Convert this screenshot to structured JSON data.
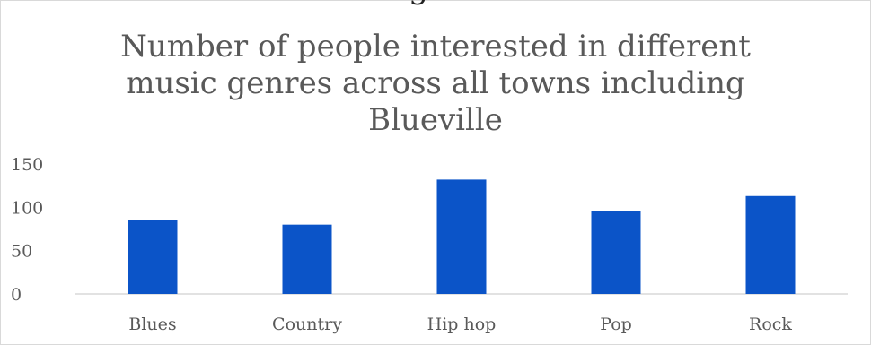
{
  "cut_text": "g",
  "chart_data": {
    "type": "bar",
    "title_lines": [
      "Number of people interested in different",
      "music genres across all towns including",
      "Blueville"
    ],
    "categories": [
      "Blues",
      "Country",
      "Hip hop",
      "Pop",
      "Rock"
    ],
    "values": [
      85,
      80,
      132,
      96,
      113
    ],
    "ylim": [
      0,
      150
    ],
    "yticks": [
      "0",
      "50",
      "100",
      "150"
    ],
    "gridlines": false,
    "bar_color": "#0b54c8",
    "axis_color": "#d9d9d9"
  }
}
